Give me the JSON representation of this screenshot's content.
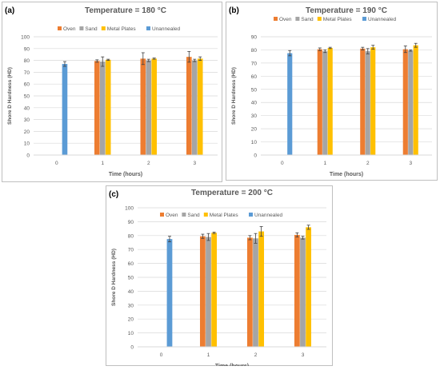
{
  "legend_labels": [
    "Oven",
    "Sand",
    "Metal Plates",
    "Unannealed"
  ],
  "colors": {
    "Oven": "#ED7D31",
    "Sand": "#A5A5A5",
    "Metal Plates": "#FFC000",
    "Unannealed": "#5B9BD5",
    "grid": "#D9D9D9",
    "frame": "#BFBFBF",
    "text": "#595959"
  },
  "chart_data": [
    {
      "type": "bar",
      "panel_label": "(a)",
      "title": "Temperature = 180 °C",
      "xlabel": "Time (hours)",
      "ylabel": "Shore D Hardness (HD)",
      "ylim": [
        0,
        100
      ],
      "yticks": [
        0,
        10,
        20,
        30,
        40,
        50,
        60,
        70,
        80,
        90,
        100
      ],
      "categories": [
        "0",
        "1",
        "2",
        "3"
      ],
      "legend_position": "top",
      "grid": true,
      "series": [
        {
          "name": "Oven",
          "values": [
            null,
            79.5,
            81.5,
            83.0
          ],
          "errors": [
            null,
            1.0,
            5.0,
            4.5
          ]
        },
        {
          "name": "Sand",
          "values": [
            null,
            79.0,
            80.0,
            80.0
          ],
          "errors": [
            null,
            4.0,
            1.0,
            1.0
          ]
        },
        {
          "name": "Metal Plates",
          "values": [
            null,
            80.5,
            81.5,
            81.5
          ],
          "errors": [
            null,
            0.5,
            0.5,
            1.5
          ]
        },
        {
          "name": "Unannealed",
          "values": [
            77.0,
            null,
            null,
            null
          ],
          "errors": [
            2.0,
            null,
            null,
            null
          ]
        }
      ]
    },
    {
      "type": "bar",
      "panel_label": "(b)",
      "title": "Temperature = 190 °C",
      "xlabel": "Time (hours)",
      "ylabel": "Shore D Hardness (HD)",
      "ylim": [
        0,
        90
      ],
      "yticks": [
        0,
        10,
        20,
        30,
        40,
        50,
        60,
        70,
        80,
        90
      ],
      "categories": [
        "0",
        "1",
        "2",
        "3"
      ],
      "legend_position": "top",
      "grid": true,
      "series": [
        {
          "name": "Oven",
          "values": [
            null,
            80.5,
            81.0,
            80.5
          ],
          "errors": [
            null,
            1.0,
            1.0,
            2.5
          ]
        },
        {
          "name": "Sand",
          "values": [
            null,
            79.0,
            79.0,
            79.5
          ],
          "errors": [
            null,
            1.0,
            2.0,
            0.5
          ]
        },
        {
          "name": "Metal Plates",
          "values": [
            null,
            81.5,
            82.0,
            83.5
          ],
          "errors": [
            null,
            0.5,
            1.5,
            1.5
          ]
        },
        {
          "name": "Unannealed",
          "values": [
            77.5,
            null,
            null,
            null
          ],
          "errors": [
            2.0,
            null,
            null,
            null
          ]
        }
      ]
    },
    {
      "type": "bar",
      "panel_label": "(c)",
      "title": "Temperature = 200 °C",
      "xlabel": "Time (hours)",
      "ylabel": "Shore D Hardness (HD)",
      "ylim": [
        0,
        100
      ],
      "yticks": [
        0,
        10,
        20,
        30,
        40,
        50,
        60,
        70,
        80,
        90,
        100
      ],
      "categories": [
        "0",
        "1",
        "2",
        "3"
      ],
      "legend_position": "top",
      "grid": true,
      "series": [
        {
          "name": "Oven",
          "values": [
            null,
            79.5,
            78.5,
            80.5
          ],
          "errors": [
            null,
            1.5,
            1.5,
            1.5
          ]
        },
        {
          "name": "Sand",
          "values": [
            null,
            79.0,
            78.0,
            78.5
          ],
          "errors": [
            null,
            2.5,
            3.5,
            1.0
          ]
        },
        {
          "name": "Metal Plates",
          "values": [
            null,
            82.0,
            83.0,
            86.0
          ],
          "errors": [
            null,
            0.5,
            3.5,
            1.5
          ]
        },
        {
          "name": "Unannealed",
          "values": [
            77.5,
            null,
            null,
            null
          ],
          "errors": [
            2.0,
            null,
            null,
            null
          ]
        }
      ]
    }
  ]
}
